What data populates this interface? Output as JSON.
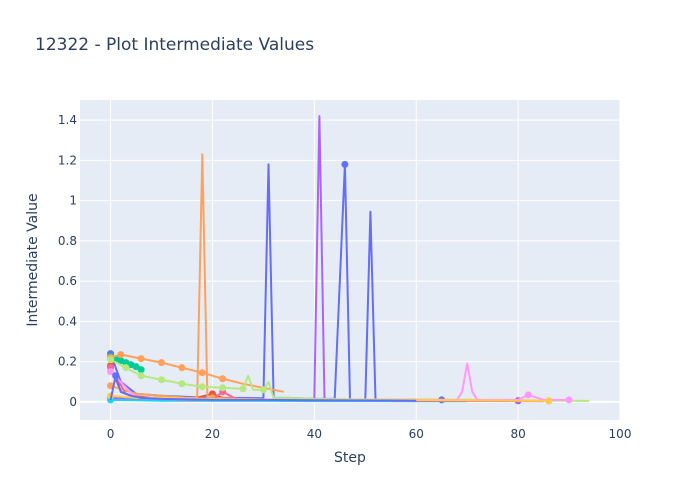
{
  "chart_data": {
    "type": "line",
    "title": "12322 - Plot Intermediate Values",
    "xlabel": "Step",
    "ylabel": "Intermediate Value",
    "xlim": [
      -6,
      100
    ],
    "ylim": [
      -0.09,
      1.5
    ],
    "x_ticks": [
      {
        "v": 0,
        "label": "0"
      },
      {
        "v": 20,
        "label": "20"
      },
      {
        "v": 40,
        "label": "40"
      },
      {
        "v": 60,
        "label": "60"
      },
      {
        "v": 80,
        "label": "80"
      },
      {
        "v": 100,
        "label": "100"
      }
    ],
    "y_ticks": [
      {
        "v": 0,
        "label": "0"
      },
      {
        "v": 0.2,
        "label": "0.2"
      },
      {
        "v": 0.4,
        "label": "0.4"
      },
      {
        "v": 0.6,
        "label": "0.6"
      },
      {
        "v": 0.8,
        "label": "0.8"
      },
      {
        "v": 1.0,
        "label": "1"
      },
      {
        "v": 1.2,
        "label": "1.2"
      },
      {
        "v": 1.4,
        "label": "1.4"
      }
    ],
    "grid": true,
    "legend": "none",
    "plot_bg": "#e5ecf6",
    "series": [
      {
        "color": "#636efa",
        "x": [
          0,
          2,
          5,
          10,
          15,
          20,
          25,
          30,
          31,
          32,
          35,
          40,
          44,
          46,
          47,
          50,
          51,
          52,
          55,
          60,
          65,
          70,
          75,
          80,
          85
        ],
        "y": [
          0.24,
          0.1,
          0.04,
          0.03,
          0.025,
          0.02,
          0.02,
          0.018,
          1.18,
          0.02,
          0.02,
          0.015,
          0.015,
          1.18,
          0.012,
          0.01,
          0.945,
          0.01,
          0.01,
          0.01,
          0.01,
          0.008,
          0.008,
          0.007,
          0.005
        ],
        "markers": [
          0,
          46,
          56,
          65,
          74
        ]
      },
      {
        "color": "#ef553b",
        "x": [
          0,
          2,
          4,
          8,
          12,
          16,
          20,
          22,
          25,
          30,
          40,
          50,
          60,
          70,
          80
        ],
        "y": [
          0.18,
          0.05,
          0.03,
          0.02,
          0.02,
          0.015,
          0.04,
          0.02,
          0.015,
          0.012,
          0.01,
          0.01,
          0.01,
          0.008,
          0.006
        ],
        "markers": [
          0,
          20,
          80
        ]
      },
      {
        "color": "#00cc96",
        "x": [
          0,
          1,
          2,
          3,
          4,
          5,
          6
        ],
        "y": [
          0.225,
          0.215,
          0.205,
          0.195,
          0.185,
          0.175,
          0.16
        ],
        "markers": [
          0,
          1,
          2,
          3,
          4,
          5,
          6
        ]
      },
      {
        "color": "#ab63fa",
        "x": [
          0,
          5,
          10,
          20,
          30,
          35,
          40,
          41,
          42,
          45,
          50,
          60,
          70,
          80
        ],
        "y": [
          0.02,
          0.015,
          0.01,
          0.01,
          0.01,
          0.012,
          0.01,
          1.42,
          0.01,
          0.01,
          0.01,
          0.008,
          0.008,
          0.005
        ],
        "markers": [
          0,
          80
        ]
      },
      {
        "color": "#ffa15a",
        "x": [
          0,
          2,
          6,
          10,
          14,
          18,
          20,
          22,
          26,
          30,
          34
        ],
        "y": [
          0.22,
          0.235,
          0.215,
          0.195,
          0.17,
          0.145,
          0.13,
          0.115,
          0.09,
          0.07,
          0.05
        ],
        "markers": [
          0,
          2,
          6,
          10,
          14,
          18,
          22
        ]
      },
      {
        "color": "#ffa15a",
        "x": [
          0,
          5,
          10,
          15,
          17,
          18,
          19,
          20,
          25,
          30,
          40,
          50,
          60,
          70,
          80,
          86
        ],
        "y": [
          0.08,
          0.04,
          0.03,
          0.02,
          0.02,
          1.23,
          0.02,
          0.02,
          0.015,
          0.012,
          0.01,
          0.01,
          0.01,
          0.01,
          0.008,
          0.005
        ],
        "markers": [
          0,
          20,
          86
        ]
      },
      {
        "color": "#19d3f3",
        "x": [
          0,
          5,
          10,
          20,
          30,
          40,
          50,
          60,
          70
        ],
        "y": [
          0.01,
          0.008,
          0.006,
          0.005,
          0.005,
          0.004,
          0.004,
          0.003,
          0.003
        ],
        "markers": [
          0
        ]
      },
      {
        "color": "#ff6692",
        "x": [
          0,
          3,
          6,
          10,
          15,
          20,
          22,
          25,
          30,
          40,
          50,
          60,
          70,
          80,
          85
        ],
        "y": [
          0.17,
          0.04,
          0.02,
          0.015,
          0.01,
          0.01,
          0.05,
          0.01,
          0.01,
          0.008,
          0.007,
          0.006,
          0.005,
          0.004,
          0.003
        ],
        "markers": [
          0,
          22
        ]
      },
      {
        "color": "#b6e880",
        "x": [
          0,
          3,
          6,
          10,
          14,
          18,
          22,
          26,
          27,
          28,
          30,
          31,
          32,
          35,
          40,
          50,
          60,
          70,
          80,
          90,
          94
        ],
        "y": [
          0.21,
          0.17,
          0.13,
          0.11,
          0.09,
          0.075,
          0.07,
          0.065,
          0.13,
          0.06,
          0.06,
          0.1,
          0.02,
          0.02,
          0.015,
          0.012,
          0.01,
          0.01,
          0.008,
          0.006,
          0.005
        ],
        "markers": [
          0,
          3,
          6,
          10,
          14,
          18,
          22,
          26,
          30
        ]
      },
      {
        "color": "#ff97ff",
        "x": [
          0,
          5,
          10,
          20,
          30,
          40,
          50,
          60,
          68,
          69,
          70,
          71,
          72,
          80,
          82,
          85,
          90
        ],
        "y": [
          0.15,
          0.02,
          0.015,
          0.01,
          0.01,
          0.01,
          0.01,
          0.01,
          0.01,
          0.05,
          0.19,
          0.05,
          0.01,
          0.01,
          0.035,
          0.01,
          0.01
        ],
        "markers": [
          0,
          82,
          90
        ]
      },
      {
        "color": "#fecb52",
        "x": [
          0,
          5,
          10,
          20,
          30,
          40,
          50,
          60,
          70,
          80,
          86
        ],
        "y": [
          0.03,
          0.02,
          0.02,
          0.015,
          0.012,
          0.01,
          0.01,
          0.01,
          0.008,
          0.006,
          0.005
        ],
        "markers": [
          0,
          86
        ]
      },
      {
        "color": "#636efa",
        "x": [
          0,
          1,
          2,
          4,
          6,
          10,
          20,
          30,
          40,
          50,
          60
        ],
        "y": [
          0.01,
          0.13,
          0.05,
          0.03,
          0.02,
          0.015,
          0.01,
          0.01,
          0.008,
          0.007,
          0.006
        ],
        "markers": [
          1
        ]
      }
    ]
  }
}
